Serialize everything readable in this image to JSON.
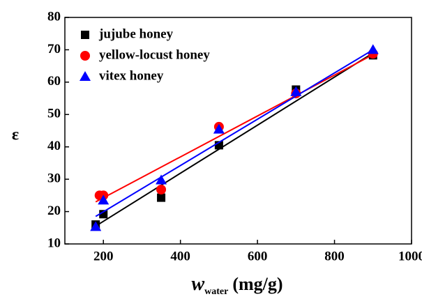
{
  "chart_data": {
    "type": "scatter",
    "x_label": {
      "symbol": "w",
      "subscript": "water",
      "unit": "(mg/g)"
    },
    "y_label": "ε",
    "xlim": [
      100,
      1000
    ],
    "xticks": [
      200,
      400,
      600,
      800,
      1000
    ],
    "ylim": [
      10,
      80
    ],
    "yticks": [
      10,
      20,
      30,
      40,
      50,
      60,
      70,
      80
    ],
    "legend": "top-left",
    "series": [
      {
        "name": "jujube honey",
        "color": "#000000",
        "marker": "square",
        "x": [
          180,
          200,
          350,
          500,
          700,
          900
        ],
        "values": [
          16,
          19.2,
          24.3,
          40.5,
          57.7,
          68.3
        ],
        "fit": {
          "x": [
            180,
            900
          ],
          "values": [
            15.5,
            69
          ]
        }
      },
      {
        "name": "yellow-locust honey",
        "color": "#ff0000",
        "marker": "circle",
        "x": [
          190,
          200,
          350,
          500,
          700,
          900
        ],
        "values": [
          25,
          25,
          26.8,
          46.2,
          56.5,
          68.8
        ],
        "fit": {
          "x": [
            180,
            900
          ],
          "values": [
            23,
            68.5
          ]
        }
      },
      {
        "name": "vitex honey",
        "color": "#0000ff",
        "marker": "triangle",
        "x": [
          180,
          200,
          350,
          500,
          700,
          900
        ],
        "values": [
          15.3,
          23.5,
          29.7,
          45.4,
          57,
          70
        ],
        "fit": {
          "x": [
            180,
            900
          ],
          "values": [
            18.5,
            70
          ]
        }
      }
    ]
  }
}
